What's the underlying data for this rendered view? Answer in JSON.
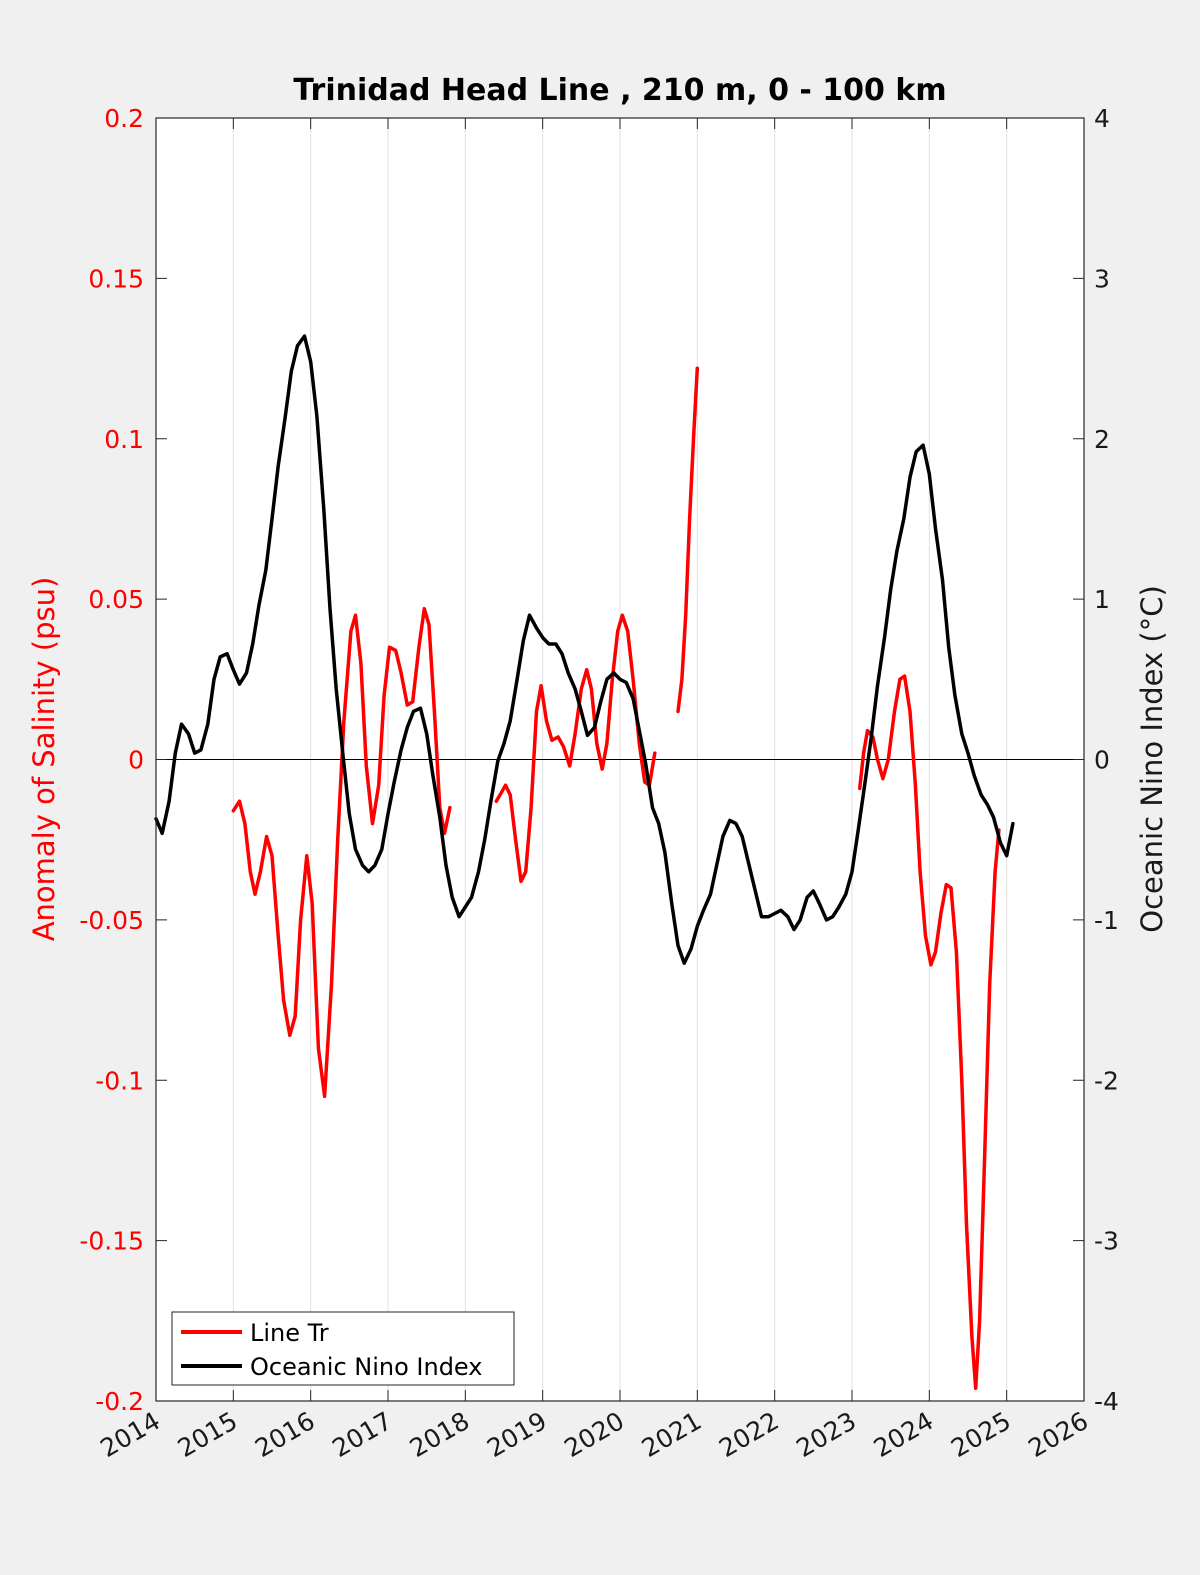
{
  "chart_data": {
    "type": "line",
    "title": "Trinidad Head Line , 210 m, 0 - 100 km",
    "ylabel_left": "Anomaly of Salinity (psu)",
    "ylabel_right": "Oceanic Nino Index (°C)",
    "xlim": [
      2014,
      2026
    ],
    "ylim_left": [
      -0.2,
      0.2
    ],
    "ylim_right": [
      -4,
      4
    ],
    "x_ticks": [
      "2014",
      "2015",
      "2016",
      "2017",
      "2018",
      "2019",
      "2020",
      "2021",
      "2022",
      "2023",
      "2024",
      "2025",
      "2026"
    ],
    "y_left_ticks": [
      "0.2",
      "0.15",
      "0.1",
      "0.05",
      "0",
      "-0.05",
      "-0.1",
      "-0.15",
      "-0.2"
    ],
    "y_right_ticks": [
      "4",
      "3",
      "2",
      "1",
      "0",
      "-1",
      "-2",
      "-3",
      "-4"
    ],
    "grid": "vertical",
    "legend_position": "bottom-left",
    "colors": {
      "salinity": "#ff0000",
      "oni": "#000000",
      "axis": "#262626",
      "grid": "#e0e0e0"
    },
    "series": [
      {
        "name": "Line Tr",
        "axis": "left",
        "segments": [
          [
            [
              2015.0,
              -0.016
            ],
            [
              2015.08,
              -0.013
            ],
            [
              2015.15,
              -0.02
            ],
            [
              2015.22,
              -0.035
            ],
            [
              2015.28,
              -0.042
            ],
            [
              2015.35,
              -0.035
            ],
            [
              2015.43,
              -0.024
            ],
            [
              2015.5,
              -0.03
            ],
            [
              2015.58,
              -0.055
            ],
            [
              2015.65,
              -0.075
            ],
            [
              2015.73,
              -0.086
            ],
            [
              2015.8,
              -0.08
            ],
            [
              2015.87,
              -0.05
            ],
            [
              2015.95,
              -0.03
            ],
            [
              2016.02,
              -0.045
            ],
            [
              2016.1,
              -0.09
            ],
            [
              2016.18,
              -0.105
            ],
            [
              2016.27,
              -0.07
            ],
            [
              2016.35,
              -0.025
            ],
            [
              2016.43,
              0.012
            ],
            [
              2016.52,
              0.04
            ],
            [
              2016.58,
              0.045
            ],
            [
              2016.65,
              0.03
            ],
            [
              2016.72,
              -0.002
            ],
            [
              2016.8,
              -0.02
            ],
            [
              2016.88,
              -0.008
            ],
            [
              2016.95,
              0.02
            ],
            [
              2017.02,
              0.035
            ],
            [
              2017.1,
              0.034
            ],
            [
              2017.17,
              0.027
            ],
            [
              2017.25,
              0.017
            ],
            [
              2017.32,
              0.018
            ],
            [
              2017.4,
              0.035
            ],
            [
              2017.47,
              0.047
            ],
            [
              2017.53,
              0.042
            ],
            [
              2017.6,
              0.015
            ],
            [
              2017.67,
              -0.015
            ],
            [
              2017.73,
              -0.023
            ],
            [
              2017.8,
              -0.015
            ]
          ],
          [
            [
              2018.4,
              -0.013
            ],
            [
              2018.45,
              -0.011
            ],
            [
              2018.52,
              -0.008
            ],
            [
              2018.58,
              -0.011
            ],
            [
              2018.65,
              -0.025
            ],
            [
              2018.72,
              -0.038
            ],
            [
              2018.78,
              -0.035
            ],
            [
              2018.85,
              -0.015
            ],
            [
              2018.92,
              0.015
            ],
            [
              2018.98,
              0.023
            ],
            [
              2019.05,
              0.012
            ],
            [
              2019.12,
              0.006
            ],
            [
              2019.2,
              0.007
            ],
            [
              2019.27,
              0.004
            ],
            [
              2019.35,
              -0.002
            ],
            [
              2019.42,
              0.008
            ],
            [
              2019.5,
              0.022
            ],
            [
              2019.57,
              0.028
            ],
            [
              2019.63,
              0.022
            ],
            [
              2019.7,
              0.005
            ],
            [
              2019.77,
              -0.003
            ],
            [
              2019.83,
              0.005
            ],
            [
              2019.9,
              0.025
            ],
            [
              2019.97,
              0.04
            ],
            [
              2020.03,
              0.045
            ],
            [
              2020.1,
              0.04
            ],
            [
              2020.17,
              0.025
            ],
            [
              2020.25,
              0.005
            ],
            [
              2020.32,
              -0.007
            ],
            [
              2020.38,
              -0.008
            ],
            [
              2020.45,
              0.002
            ]
          ],
          [
            [
              2020.75,
              0.015
            ],
            [
              2020.8,
              0.025
            ],
            [
              2020.85,
              0.045
            ],
            [
              2020.9,
              0.075
            ],
            [
              2020.95,
              0.1
            ],
            [
              2021.0,
              0.122
            ]
          ],
          [
            [
              2023.1,
              -0.009
            ],
            [
              2023.15,
              0.002
            ],
            [
              2023.2,
              0.009
            ],
            [
              2023.27,
              0.007
            ],
            [
              2023.33,
              0.0
            ],
            [
              2023.4,
              -0.006
            ],
            [
              2023.47,
              0.0
            ],
            [
              2023.55,
              0.015
            ],
            [
              2023.62,
              0.025
            ],
            [
              2023.68,
              0.026
            ],
            [
              2023.75,
              0.015
            ],
            [
              2023.82,
              -0.008
            ],
            [
              2023.88,
              -0.035
            ],
            [
              2023.95,
              -0.055
            ],
            [
              2024.02,
              -0.064
            ],
            [
              2024.08,
              -0.06
            ],
            [
              2024.15,
              -0.048
            ],
            [
              2024.22,
              -0.039
            ],
            [
              2024.28,
              -0.04
            ],
            [
              2024.35,
              -0.06
            ],
            [
              2024.42,
              -0.1
            ],
            [
              2024.48,
              -0.145
            ],
            [
              2024.55,
              -0.18
            ],
            [
              2024.6,
              -0.196
            ],
            [
              2024.65,
              -0.175
            ],
            [
              2024.72,
              -0.12
            ],
            [
              2024.78,
              -0.07
            ],
            [
              2024.85,
              -0.035
            ],
            [
              2024.9,
              -0.022
            ]
          ]
        ]
      },
      {
        "name": "Oceanic Nino Index",
        "axis": "right",
        "segments": [
          [
            [
              2014.0,
              -0.37
            ],
            [
              2014.08,
              -0.46
            ],
            [
              2014.17,
              -0.26
            ],
            [
              2014.25,
              0.04
            ],
            [
              2014.33,
              0.22
            ],
            [
              2014.42,
              0.16
            ],
            [
              2014.5,
              0.04
            ],
            [
              2014.58,
              0.06
            ],
            [
              2014.67,
              0.22
            ],
            [
              2014.75,
              0.5
            ],
            [
              2014.83,
              0.64
            ],
            [
              2014.92,
              0.66
            ],
            [
              2015.0,
              0.56
            ],
            [
              2015.08,
              0.47
            ],
            [
              2015.17,
              0.54
            ],
            [
              2015.25,
              0.72
            ],
            [
              2015.33,
              0.96
            ],
            [
              2015.42,
              1.18
            ],
            [
              2015.5,
              1.5
            ],
            [
              2015.58,
              1.83
            ],
            [
              2015.67,
              2.13
            ],
            [
              2015.75,
              2.42
            ],
            [
              2015.83,
              2.58
            ],
            [
              2015.92,
              2.64
            ],
            [
              2016.0,
              2.48
            ],
            [
              2016.08,
              2.14
            ],
            [
              2016.17,
              1.56
            ],
            [
              2016.25,
              0.94
            ],
            [
              2016.33,
              0.44
            ],
            [
              2016.42,
              0.02
            ],
            [
              2016.5,
              -0.34
            ],
            [
              2016.58,
              -0.56
            ],
            [
              2016.67,
              -0.66
            ],
            [
              2016.75,
              -0.7
            ],
            [
              2016.83,
              -0.66
            ],
            [
              2016.92,
              -0.56
            ],
            [
              2017.0,
              -0.34
            ],
            [
              2017.08,
              -0.14
            ],
            [
              2017.17,
              0.06
            ],
            [
              2017.25,
              0.2
            ],
            [
              2017.33,
              0.3
            ],
            [
              2017.42,
              0.32
            ],
            [
              2017.5,
              0.16
            ],
            [
              2017.58,
              -0.1
            ],
            [
              2017.67,
              -0.36
            ],
            [
              2017.75,
              -0.66
            ],
            [
              2017.83,
              -0.86
            ],
            [
              2017.92,
              -0.98
            ],
            [
              2018.0,
              -0.92
            ],
            [
              2018.08,
              -0.86
            ],
            [
              2018.17,
              -0.7
            ],
            [
              2018.25,
              -0.5
            ],
            [
              2018.33,
              -0.26
            ],
            [
              2018.42,
              -0.01
            ],
            [
              2018.5,
              0.1
            ],
            [
              2018.58,
              0.24
            ],
            [
              2018.67,
              0.5
            ],
            [
              2018.75,
              0.74
            ],
            [
              2018.83,
              0.9
            ],
            [
              2018.92,
              0.82
            ],
            [
              2019.0,
              0.76
            ],
            [
              2019.08,
              0.72
            ],
            [
              2019.17,
              0.72
            ],
            [
              2019.25,
              0.66
            ],
            [
              2019.33,
              0.54
            ],
            [
              2019.42,
              0.44
            ],
            [
              2019.5,
              0.3
            ],
            [
              2019.58,
              0.15
            ],
            [
              2019.67,
              0.2
            ],
            [
              2019.75,
              0.36
            ],
            [
              2019.83,
              0.5
            ],
            [
              2019.92,
              0.54
            ],
            [
              2020.0,
              0.5
            ],
            [
              2020.08,
              0.48
            ],
            [
              2020.17,
              0.38
            ],
            [
              2020.25,
              0.18
            ],
            [
              2020.33,
              -0.02
            ],
            [
              2020.42,
              -0.3
            ],
            [
              2020.5,
              -0.4
            ],
            [
              2020.58,
              -0.58
            ],
            [
              2020.67,
              -0.9
            ],
            [
              2020.75,
              -1.16
            ],
            [
              2020.83,
              -1.27
            ],
            [
              2020.92,
              -1.18
            ],
            [
              2021.0,
              -1.04
            ],
            [
              2021.08,
              -0.94
            ],
            [
              2021.17,
              -0.84
            ],
            [
              2021.25,
              -0.66
            ],
            [
              2021.33,
              -0.48
            ],
            [
              2021.42,
              -0.38
            ],
            [
              2021.5,
              -0.4
            ],
            [
              2021.58,
              -0.48
            ],
            [
              2021.67,
              -0.66
            ],
            [
              2021.75,
              -0.82
            ],
            [
              2021.83,
              -0.98
            ],
            [
              2021.92,
              -0.98
            ],
            [
              2022.0,
              -0.96
            ],
            [
              2022.08,
              -0.94
            ],
            [
              2022.17,
              -0.98
            ],
            [
              2022.25,
              -1.06
            ],
            [
              2022.33,
              -1.0
            ],
            [
              2022.42,
              -0.86
            ],
            [
              2022.5,
              -0.82
            ],
            [
              2022.58,
              -0.9
            ],
            [
              2022.67,
              -1.0
            ],
            [
              2022.75,
              -0.98
            ],
            [
              2022.83,
              -0.92
            ],
            [
              2022.92,
              -0.84
            ],
            [
              2023.0,
              -0.7
            ],
            [
              2023.08,
              -0.44
            ],
            [
              2023.17,
              -0.14
            ],
            [
              2023.25,
              0.14
            ],
            [
              2023.33,
              0.46
            ],
            [
              2023.42,
              0.76
            ],
            [
              2023.5,
              1.06
            ],
            [
              2023.58,
              1.3
            ],
            [
              2023.67,
              1.5
            ],
            [
              2023.75,
              1.76
            ],
            [
              2023.83,
              1.92
            ],
            [
              2023.92,
              1.96
            ],
            [
              2024.0,
              1.78
            ],
            [
              2024.08,
              1.44
            ],
            [
              2024.17,
              1.12
            ],
            [
              2024.25,
              0.7
            ],
            [
              2024.33,
              0.4
            ],
            [
              2024.42,
              0.16
            ],
            [
              2024.5,
              0.04
            ],
            [
              2024.58,
              -0.1
            ],
            [
              2024.67,
              -0.22
            ],
            [
              2024.75,
              -0.28
            ],
            [
              2024.83,
              -0.36
            ],
            [
              2024.92,
              -0.52
            ],
            [
              2025.0,
              -0.6
            ],
            [
              2025.08,
              -0.4
            ]
          ]
        ]
      }
    ],
    "legend": [
      "Line Tr",
      "Oceanic Nino Index"
    ]
  }
}
